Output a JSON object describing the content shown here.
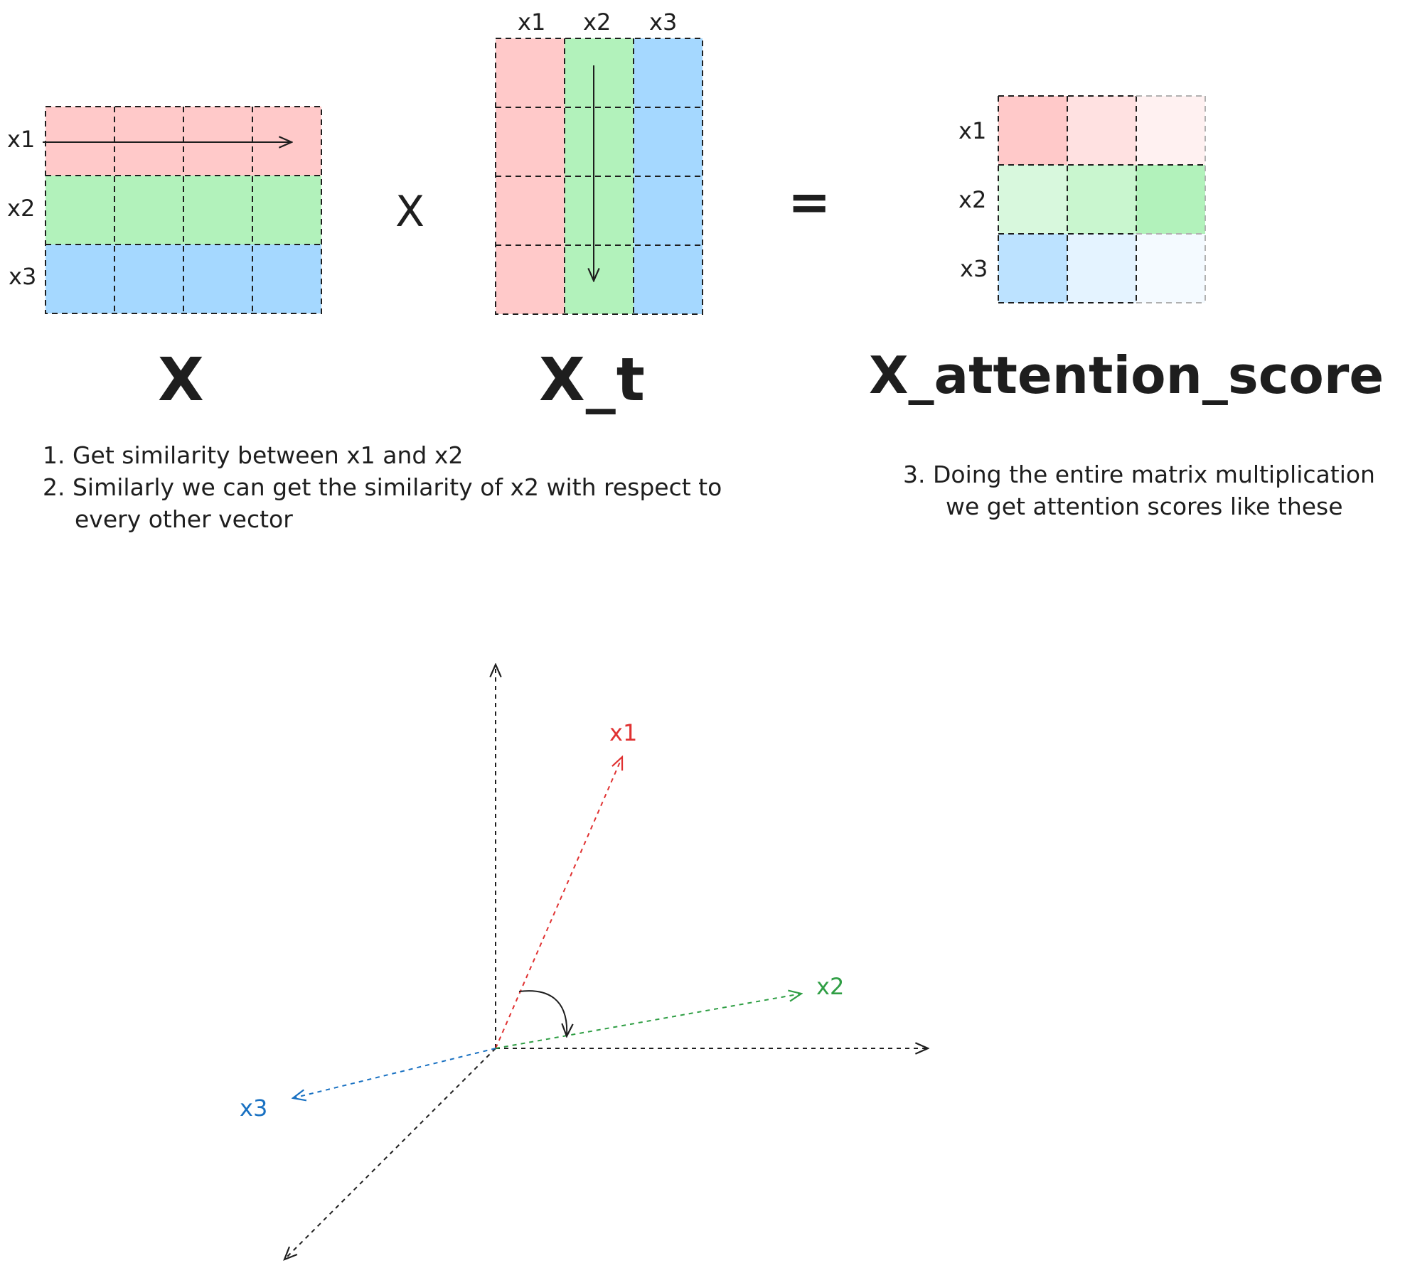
{
  "matrix_x": {
    "name": "X",
    "row_labels": [
      "x1",
      "x2",
      "x3"
    ]
  },
  "matrix_xt": {
    "name": "X_t",
    "col_labels": [
      "x1",
      "x2",
      "x3"
    ]
  },
  "matrix_score": {
    "name": "X_attention_score",
    "row_labels": [
      "x1",
      "x2",
      "x3"
    ]
  },
  "operators": {
    "multiply": "X",
    "equals": "="
  },
  "notes": {
    "left": [
      "1. Get similarity between x1 and x2",
      "2. Similarly we can get the similarity of x2 with respect to",
      "every other vector"
    ],
    "right": [
      "3. Doing the entire matrix multiplication",
      "we get attention scores like these"
    ]
  },
  "vectors": {
    "x1": "x1",
    "x2": "x2",
    "x3": "x3"
  },
  "colors": {
    "red": "#ffc9c9",
    "green": "#b2f2bb",
    "blue": "#a5d8ff",
    "x1_vector": "#e03131",
    "x2_vector": "#2f9e44",
    "x3_vector": "#1971c2",
    "stroke": "#1e1e1e"
  }
}
